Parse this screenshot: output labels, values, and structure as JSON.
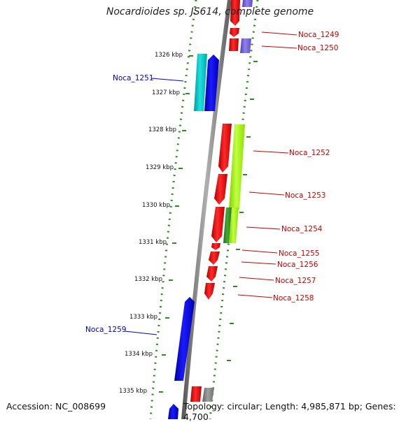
{
  "title": "Nocardioides sp. JS614, complete genome",
  "footer": {
    "accession": "Accession: NC_008699",
    "topology": "Topology: circular; Length: 4,985,871 bp; Genes: 4,700"
  },
  "colors": {
    "backbone": "#808080",
    "tick_dots": "#2e8b22",
    "forward_label": "#0000cc",
    "reverse_label": "#cc0000",
    "red_gene": "#ff0000",
    "blue_gene": "#0000ff",
    "cyan_gene": "#00c8c8",
    "green_gene": "#a6ff00",
    "dark_green_gene": "#3a9a2a",
    "purple_gene": "#8070e0",
    "grey_gene": "#808080"
  },
  "scale_labels": [
    "1326 kbp",
    "1327 kbp",
    "1328 kbp",
    "1329 kbp",
    "1330 kbp",
    "1331 kbp",
    "1332 kbp",
    "1333 kbp",
    "1334 kbp",
    "1335 kbp"
  ],
  "gene_labels": [
    {
      "name": "Noca_1249",
      "strand": "reverse"
    },
    {
      "name": "Noca_1250",
      "strand": "reverse"
    },
    {
      "name": "Noca_1251",
      "strand": "forward"
    },
    {
      "name": "Noca_1252",
      "strand": "reverse"
    },
    {
      "name": "Noca_1253",
      "strand": "reverse"
    },
    {
      "name": "Noca_1254",
      "strand": "reverse"
    },
    {
      "name": "Noca_1255",
      "strand": "reverse"
    },
    {
      "name": "Noca_1256",
      "strand": "reverse"
    },
    {
      "name": "Noca_1257",
      "strand": "reverse"
    },
    {
      "name": "Noca_1258",
      "strand": "reverse"
    },
    {
      "name": "Noca_1259",
      "strand": "forward"
    }
  ]
}
